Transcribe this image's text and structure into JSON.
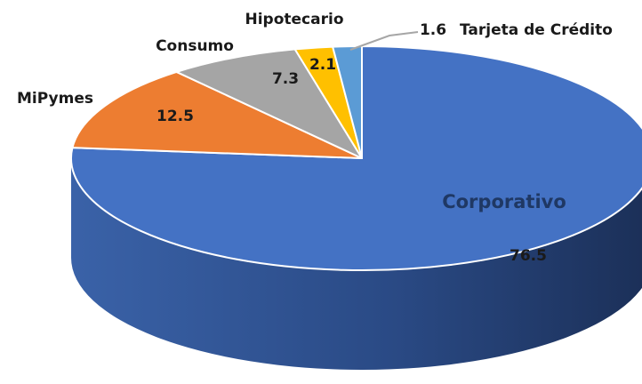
{
  "chart_data": {
    "type": "pie",
    "categories": [
      "Corporativo",
      "MiPymes",
      "Consumo",
      "Hipotecario",
      "Tarjeta de Crédito"
    ],
    "values": [
      76.5,
      12.5,
      7.3,
      2.1,
      1.6
    ],
    "colors": [
      "#4472c4",
      "#ed7d31",
      "#a5a5a5",
      "#ffc000",
      "#5b9bd5"
    ],
    "start_angle": "top",
    "direction": "clockwise",
    "style": "3d"
  }
}
